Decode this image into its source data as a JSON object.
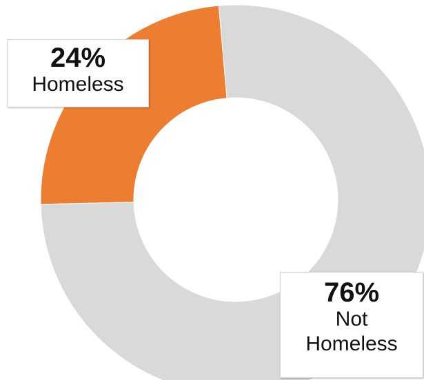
{
  "chart_data": {
    "type": "pie",
    "variant": "donut",
    "slices": [
      {
        "label": "Homeless",
        "value": 24,
        "percent_label": "24%",
        "color": "#ED7D31"
      },
      {
        "label": "Not Homeless",
        "value": 76,
        "percent_label": "76%",
        "color": "#D9D9D9"
      }
    ],
    "legend": "none",
    "data_labels": "callout-boxes"
  }
}
